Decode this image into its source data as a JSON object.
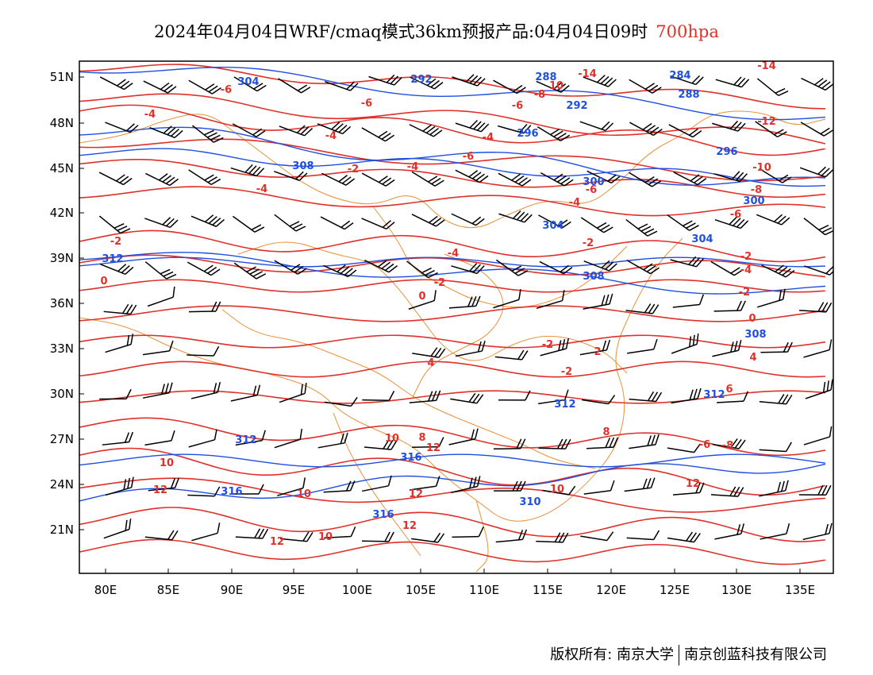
{
  "title": {
    "main": "2024年04月04日WRF/cmaq模式36km预报产品:04月04日09时",
    "level": "700hpa"
  },
  "map": {
    "lon_ticks": [
      "80E",
      "85E",
      "90E",
      "95E",
      "100E",
      "105E",
      "110E",
      "115E",
      "120E",
      "125E",
      "130E",
      "135E"
    ],
    "lat_ticks": [
      "51N",
      "48N",
      "45N",
      "42N",
      "39N",
      "36N",
      "33N",
      "30N",
      "27N",
      "24N",
      "21N"
    ],
    "height_labels": [
      "304",
      "292",
      "288",
      "284",
      "288",
      "292",
      "296",
      "296",
      "308",
      "300",
      "300",
      "304",
      "304",
      "308",
      "312",
      "308",
      "312",
      "312",
      "312",
      "316",
      "316",
      "316",
      "310"
    ],
    "temp_labels": [
      "-6",
      "-4",
      "-6",
      "-6",
      "-8",
      "10",
      "-14",
      "-14",
      "-12",
      "-4",
      "-4",
      "-6",
      "-4",
      "-2",
      "-4",
      "-10",
      "-8",
      "-6",
      "-6",
      "-4",
      "-2",
      "-2",
      "-4",
      "-2",
      "-4",
      "-2",
      "0",
      "0",
      "-2",
      "0",
      "2",
      "-2",
      "4",
      "-2",
      "4",
      "6",
      "10",
      "8",
      "12",
      "10",
      "10",
      "12",
      "12",
      "12",
      "12",
      "10",
      "12",
      "8",
      "10",
      "-6",
      "-8"
    ],
    "colors": {
      "height": "#1f4fe0",
      "temperature": "#e0302a",
      "border": "#e8923a",
      "wind": "#000000"
    }
  },
  "footer": {
    "left": "版权所有: 南京大学",
    "right": "南京创蓝科技有限公司"
  }
}
